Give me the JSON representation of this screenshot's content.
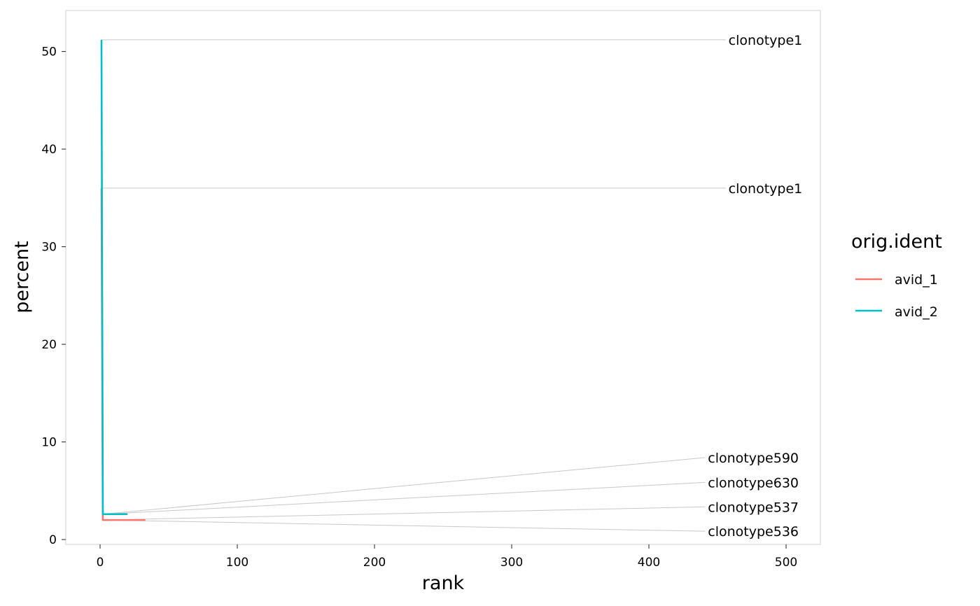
{
  "chart_data": {
    "type": "line",
    "title": "",
    "xlabel": "rank",
    "ylabel": "percent",
    "xlim": [
      -25,
      525
    ],
    "ylim": [
      -0.5,
      54.2
    ],
    "xticks": [
      0,
      100,
      200,
      300,
      400,
      500
    ],
    "yticks": [
      0,
      10,
      20,
      30,
      40,
      50
    ],
    "grid": false,
    "legend": {
      "title": "orig.ident",
      "position": "right",
      "entries": [
        "avid_1",
        "avid_2"
      ]
    },
    "series": [
      {
        "name": "avid_1",
        "color": "#F8766D",
        "points": [
          [
            1,
            36.0
          ],
          [
            2,
            2.0
          ],
          [
            5,
            2.0
          ],
          [
            10,
            2.0
          ],
          [
            20,
            2.0
          ],
          [
            33,
            2.0
          ]
        ]
      },
      {
        "name": "avid_2",
        "color": "#00BFC4",
        "points": [
          [
            1,
            51.2
          ],
          [
            2,
            2.6
          ],
          [
            5,
            2.6
          ],
          [
            10,
            2.6
          ],
          [
            20,
            2.6
          ]
        ]
      }
    ],
    "annotations": [
      {
        "label": "clonotype1",
        "series": "avid_2",
        "x": 1,
        "y": 51.2,
        "label_x": 458,
        "label_y": 51.2
      },
      {
        "label": "clonotype1",
        "series": "avid_1",
        "x": 1,
        "y": 36.0,
        "label_x": 458,
        "label_y": 36.0
      },
      {
        "label": "clonotype590",
        "series": "avid_2",
        "x": 2,
        "y": 2.6,
        "label_x": 443,
        "label_y": 8.4
      },
      {
        "label": "clonotype630",
        "series": "avid_2",
        "x": 3,
        "y": 2.6,
        "label_x": 443,
        "label_y": 5.85
      },
      {
        "label": "clonotype537",
        "series": "avid_1",
        "x": 2,
        "y": 2.0,
        "label_x": 443,
        "label_y": 3.35
      },
      {
        "label": "clonotype536",
        "series": "avid_1",
        "x": 3,
        "y": 2.0,
        "label_x": 443,
        "label_y": 0.85
      }
    ]
  }
}
